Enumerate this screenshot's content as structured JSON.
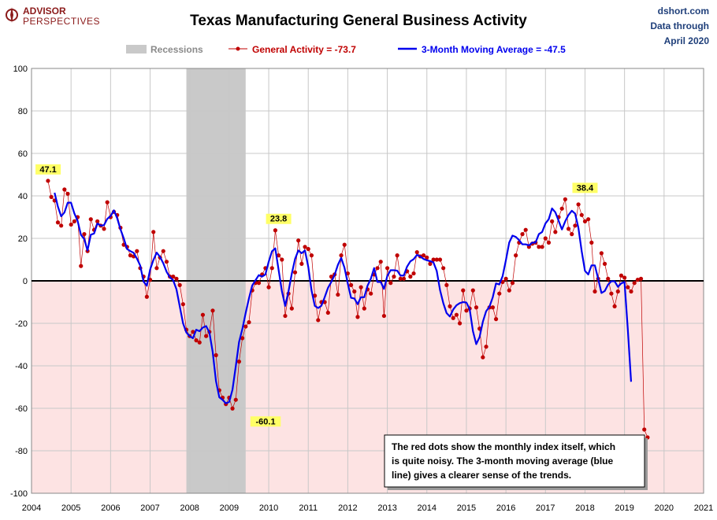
{
  "header": {
    "title": "Texas Manufacturing General Business Activity",
    "source_line1": "dshort.com",
    "source_line2": "Data through",
    "source_line3": "April 2020",
    "logo_line1": "ADVISOR",
    "logo_line2": "PERSPECTIVES"
  },
  "legend": {
    "recessions": "Recessions",
    "general": "General Activity = -73.7",
    "ma": "3-Month Moving Average = -47.5"
  },
  "note": {
    "line1": "The red dots show the monthly  index itself, which",
    "line2": "is quite noisy. The 3-month moving average (blue",
    "line3": "line) gives a clearer sense of the trends."
  },
  "colors": {
    "general": "#c00000",
    "ma": "#0000ee",
    "recession": "#c9c9c9",
    "negative_band": "#fde3e3",
    "grid": "#c8c8c8",
    "annotation_bg": "#ffff66"
  },
  "chart_data": {
    "type": "line",
    "title": "Texas Manufacturing General Business Activity",
    "xlim": [
      2004,
      2021
    ],
    "ylim": [
      -100,
      100
    ],
    "x_ticks": [
      "2004",
      "2005",
      "2006",
      "2007",
      "2008",
      "2009",
      "2010",
      "2011",
      "2012",
      "2013",
      "2014",
      "2015",
      "2016",
      "2017",
      "2018",
      "2019",
      "2020",
      "2021"
    ],
    "y_ticks": [
      "100",
      "80",
      "60",
      "40",
      "20",
      "0",
      "-20",
      "-40",
      "-60",
      "-80",
      "-100"
    ],
    "grid": true,
    "legend_position": "top",
    "recessions": [
      {
        "start": 2007.917,
        "end": 2009.417
      }
    ],
    "annotations": [
      {
        "x": 2004.42,
        "y": 47.1,
        "text": "47.1"
      },
      {
        "x": 2009.92,
        "y": -60.1,
        "text": "-60.1"
      },
      {
        "x": 2010.25,
        "y": 23.8,
        "text": "23.8"
      },
      {
        "x": 2018.0,
        "y": 38.4,
        "text": "38.4"
      }
    ],
    "series": [
      {
        "name": "General Activity = -73.7",
        "style": "dots",
        "x_start": 2004.417,
        "x_step": 0.08333,
        "values": [
          47.1,
          39.5,
          37.8,
          27.5,
          26.0,
          43.0,
          41.0,
          26.5,
          28.0,
          30.0,
          7.0,
          22.0,
          14.0,
          29.0,
          24.0,
          28.0,
          26.0,
          24.5,
          37.0,
          30.0,
          32.5,
          31.0,
          25.0,
          17.0,
          16.0,
          12.0,
          11.5,
          14.0,
          6.0,
          2.0,
          -7.5,
          0.5,
          23.0,
          6.0,
          11.0,
          14.0,
          9.0,
          2.0,
          2.0,
          1.0,
          -2.0,
          -11.0,
          -23.0,
          -26.0,
          -24.0,
          -28.0,
          -29.0,
          -16.0,
          -26.0,
          -24.0,
          -14.0,
          -35.0,
          -51.5,
          -55.0,
          -58.0,
          -55.0,
          -60.1,
          -56.0,
          -38.0,
          -27.0,
          -21.5,
          -19.5,
          -4.5,
          -1.0,
          -1.0,
          3.0,
          6.0,
          -3.0,
          6.0,
          23.8,
          12.0,
          10.0,
          -16.5,
          -6.0,
          -13.0,
          4.0,
          19.0,
          8.0,
          16.0,
          15.0,
          12.0,
          -7.0,
          -18.5,
          -10.0,
          -10.0,
          -15.0,
          2.0,
          3.0,
          -6.5,
          12.0,
          17.0,
          3.5,
          -2.0,
          -5.0,
          -17.0,
          -3.0,
          -13.0,
          -4.0,
          -6.0,
          3.0,
          6.0,
          9.0,
          -16.5,
          6.0,
          -1.0,
          2.0,
          12.0,
          1.0,
          1.0,
          4.5,
          2.0,
          3.5,
          13.5,
          11.5,
          12.0,
          11.0,
          8.0,
          10.0,
          10.0,
          10.0,
          6.0,
          -2.0,
          -12.0,
          -17.5,
          -16.0,
          -20.0,
          -4.5,
          -14.0,
          -13.0,
          -4.5,
          -12.5,
          -22.5,
          -36.0,
          -31.0,
          -12.5,
          -12.5,
          -18.0,
          -6.0,
          -0.5,
          1.0,
          -4.5,
          -1.0,
          12.0,
          18.0,
          22.0,
          24.0,
          16.0,
          17.5,
          18.0,
          16.0,
          16.0,
          20.0,
          18.0,
          28.0,
          23.0,
          30.0,
          34.0,
          38.4,
          24.5,
          22.0,
          26.0,
          36.0,
          31.0,
          28.0,
          29.0,
          18.0,
          -5.0,
          1.0,
          13.0,
          8.0,
          1.0,
          -6.0,
          -12.0,
          -5.0,
          2.5,
          1.5,
          -3.0,
          -5.0,
          -1.0,
          0.5,
          1.0,
          -70.0,
          -73.7
        ]
      },
      {
        "name": "3-Month Moving Average = -47.5",
        "style": "line",
        "x_start": 2004.583,
        "x_step": 0.08333,
        "values": [
          41.5,
          35.0,
          30.4,
          32.2,
          36.8,
          36.8,
          31.8,
          28.2,
          21.7,
          19.7,
          14.3,
          21.7,
          22.3,
          27.0,
          26.0,
          26.2,
          29.2,
          30.5,
          33.2,
          29.5,
          24.3,
          20.0,
          15.0,
          14.0,
          13.2,
          10.5,
          7.2,
          -0.3,
          -2.3,
          5.3,
          9.8,
          13.3,
          11.3,
          8.3,
          4.3,
          1.7,
          0.3,
          -4.0,
          -12.0,
          -20.0,
          -24.3,
          -26.0,
          -27.0,
          -23.0,
          -23.7,
          -22.0,
          -21.3,
          -24.3,
          -33.5,
          -47.2,
          -54.8,
          -56.0,
          -57.7,
          -57.0,
          -51.3,
          -40.3,
          -28.8,
          -22.7,
          -15.2,
          -8.3,
          -2.2,
          0.3,
          2.7,
          2.0,
          3.0,
          9.0,
          13.9,
          15.3,
          5.2,
          -4.8,
          -11.8,
          -5.0,
          3.3,
          10.3,
          14.3,
          13.0,
          14.3,
          6.7,
          -4.5,
          -11.8,
          -12.8,
          -11.7,
          -7.7,
          -3.3,
          -0.5,
          2.8,
          7.5,
          10.8,
          6.2,
          -1.2,
          -8.0,
          -8.3,
          -11.0,
          -7.7,
          -7.7,
          -2.3,
          1.0,
          6.0,
          -0.5,
          -0.5,
          -3.8,
          2.3,
          5.0,
          5.0,
          4.8,
          2.5,
          2.5,
          6.7,
          9.2,
          10.2,
          12.2,
          11.5,
          10.3,
          9.7,
          9.3,
          8.7,
          4.7,
          -4.3,
          -10.5,
          -15.2,
          -16.8,
          -13.5,
          -11.5,
          -10.5,
          -10.0,
          -10.2,
          -13.3,
          -23.7,
          -29.8,
          -26.5,
          -19.3,
          -14.3,
          -12.2,
          -7.8,
          -1.2,
          -1.7,
          2.2,
          9.7,
          18.0,
          21.3,
          20.7,
          19.2,
          17.2,
          17.2,
          16.7,
          18.0,
          18.0,
          22.0,
          23.0,
          27.0,
          29.0,
          34.1,
          32.3,
          28.3,
          24.2,
          28.0,
          31.0,
          33.0,
          31.7,
          25.0,
          14.0,
          4.7,
          3.0,
          7.3,
          7.3,
          1.0,
          -5.7,
          -4.8,
          -1.8,
          -0.2,
          -0.2,
          -2.8,
          -1.2,
          -0.5,
          -22.7,
          -47.5
        ]
      }
    ]
  }
}
